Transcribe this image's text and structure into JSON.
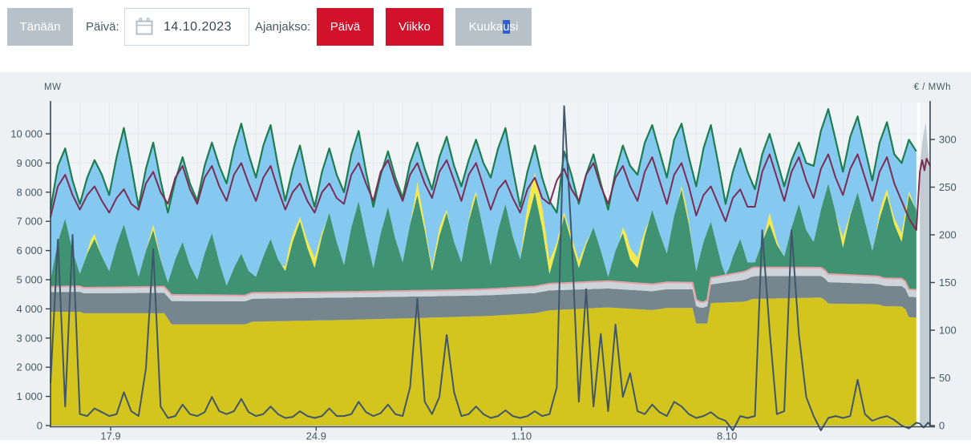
{
  "toolbar": {
    "today_button": "Tänään",
    "date_label": "Päivä:",
    "date_value": "14.10.2023",
    "period_label": "Ajanjakso:",
    "period_buttons": [
      {
        "label": "Päivä"
      },
      {
        "label": "Viikko"
      }
    ],
    "month_button": {
      "before": "Kuuka",
      "highlight": "u",
      "after": "si"
    },
    "colors": {
      "gray_button": "#b7c1c9",
      "red_button": "#d2112b",
      "selection_blue": "#2e5fd3"
    }
  },
  "chart_data": {
    "type": "area",
    "title": "",
    "panel_background": "#edf1f4",
    "plot_background": "#f1f4f6",
    "gridline_color": "#e3e9ee",
    "axis_color": "#36454e",
    "tick_text_color": "#455a64",
    "left_axis": {
      "title": "MW",
      "range": [
        0,
        11000
      ],
      "ticks": [
        {
          "v": 0,
          "label": "0"
        },
        {
          "v": 1000,
          "label": "1 000"
        },
        {
          "v": 2000,
          "label": "2 000"
        },
        {
          "v": 3000,
          "label": "3 000"
        },
        {
          "v": 4000,
          "label": "4 000"
        },
        {
          "v": 5000,
          "label": "5 000"
        },
        {
          "v": 6000,
          "label": "6 000"
        },
        {
          "v": 7000,
          "label": "7 000"
        },
        {
          "v": 8000,
          "label": "8 000"
        },
        {
          "v": 9000,
          "label": "9 000"
        },
        {
          "v": 10000,
          "label": "10 000"
        }
      ]
    },
    "right_axis": {
      "title": "€ / MWh",
      "range": [
        0,
        336
      ],
      "ticks": [
        {
          "v": 0,
          "label": "0"
        },
        {
          "v": 50,
          "label": "50"
        },
        {
          "v": 100,
          "label": "100"
        },
        {
          "v": 150,
          "label": "150"
        },
        {
          "v": 200,
          "label": "200"
        },
        {
          "v": 250,
          "label": "250"
        },
        {
          "v": 300,
          "label": "300"
        }
      ]
    },
    "x_axis": {
      "range": [
        0,
        29.97
      ],
      "data_end": 29.5,
      "ticks": [
        {
          "x": 2.05,
          "label": "17.9"
        },
        {
          "x": 9.05,
          "label": "24.9"
        },
        {
          "x": 16.05,
          "label": "1.10"
        },
        {
          "x": 23.05,
          "label": "8.10"
        }
      ]
    },
    "grid": {
      "start": 0,
      "step": 0.25
    },
    "stack_series": [
      {
        "name": "base-dark-yellow-area",
        "color": "#d4c41e",
        "type": "top-breakpoints",
        "points": [
          [
            0,
            3900
          ],
          [
            1.0,
            3900
          ],
          [
            1.1,
            3850
          ],
          [
            3.95,
            3850
          ],
          [
            4.05,
            3470
          ],
          [
            6.7,
            3470
          ],
          [
            6.8,
            3560
          ],
          [
            10,
            3620
          ],
          [
            13,
            3700
          ],
          [
            15,
            3760
          ],
          [
            16.5,
            3850
          ],
          [
            17,
            3950
          ],
          [
            19,
            4050
          ],
          [
            20.5,
            3960
          ],
          [
            21,
            4030
          ],
          [
            21.9,
            4030
          ],
          [
            22.0,
            3500
          ],
          [
            22.4,
            3500
          ],
          [
            22.5,
            4200
          ],
          [
            23.7,
            4250
          ],
          [
            23.9,
            4340
          ],
          [
            26.3,
            4390
          ],
          [
            26.5,
            4180
          ],
          [
            28.2,
            4160
          ],
          [
            28.4,
            4090
          ],
          [
            29.1,
            4080
          ],
          [
            29.2,
            3720
          ],
          [
            29.5,
            3700
          ]
        ]
      },
      {
        "name": "slate-gray-band",
        "color": "#76868f",
        "type": "thickness-breakpoints",
        "points": [
          [
            0,
            680
          ],
          [
            3.9,
            700
          ],
          [
            4.1,
            800
          ],
          [
            10,
            770
          ],
          [
            14,
            720
          ],
          [
            16,
            700
          ],
          [
            19,
            650
          ],
          [
            21.9,
            640
          ],
          [
            22.2,
            520
          ],
          [
            22.5,
            640
          ],
          [
            24,
            780
          ],
          [
            26.4,
            740
          ],
          [
            28,
            700
          ],
          [
            29.5,
            700
          ]
        ]
      },
      {
        "name": "light-gray-band",
        "color": "#cdd5da",
        "type": "thickness-breakpoints",
        "top_stroke": "#e8a0a6",
        "points": [
          [
            0,
            180
          ],
          [
            4,
            210
          ],
          [
            10,
            190
          ],
          [
            14,
            200
          ],
          [
            16,
            220
          ],
          [
            19,
            250
          ],
          [
            21.9,
            230
          ],
          [
            22.2,
            180
          ],
          [
            22.5,
            220
          ],
          [
            24,
            300
          ],
          [
            26.4,
            280
          ],
          [
            28,
            260
          ],
          [
            29.5,
            250
          ]
        ]
      },
      {
        "name": "green-band",
        "color": "#3f9372",
        "type": "top-grid",
        "values": [
          5000,
          6300,
          7100,
          6000,
          5200,
          5900,
          6400,
          5800,
          5300,
          6200,
          6900,
          6000,
          5100,
          6000,
          6700,
          5700,
          4900,
          5700,
          6300,
          5500,
          5000,
          5900,
          6600,
          5600,
          4800,
          5400,
          5900,
          5300,
          5100,
          5800,
          6400,
          5700,
          5300,
          6300,
          7000,
          6100,
          5400,
          6500,
          7300,
          6300,
          5500,
          6800,
          7700,
          6500,
          5400,
          6600,
          7500,
          6400,
          5600,
          6900,
          7900,
          6700,
          5300,
          6500,
          7300,
          6300,
          5600,
          7000,
          7900,
          6700,
          5500,
          6700,
          7600,
          6500,
          5700,
          7000,
          8000,
          6800,
          5200,
          6100,
          7200,
          6300,
          5400,
          6200,
          6800,
          6000,
          5100,
          6000,
          6600,
          5700,
          5400,
          6500,
          7400,
          6600,
          5900,
          7200,
          8100,
          6900,
          5300,
          6300,
          7000,
          6000,
          5000,
          5800,
          6400,
          5600,
          5600,
          6300,
          6900,
          6200,
          5800,
          6800,
          7600,
          6700,
          6300,
          7400,
          8300,
          7300,
          6100,
          7200,
          8000,
          7000,
          6000,
          7100,
          7900,
          6900,
          6300,
          7900,
          7400
        ]
      },
      {
        "name": "bright-yellow-band",
        "color": "#f6e94b",
        "type": "thickness-breakpoints",
        "points": [
          [
            0,
            0
          ],
          [
            1.2,
            0
          ],
          [
            1.4,
            250
          ],
          [
            1.7,
            0
          ],
          [
            3.3,
            0
          ],
          [
            3.5,
            200
          ],
          [
            3.8,
            0
          ],
          [
            7.9,
            0
          ],
          [
            8.1,
            300
          ],
          [
            8.5,
            150
          ],
          [
            9.0,
            350
          ],
          [
            9.4,
            0
          ],
          [
            12.3,
            0
          ],
          [
            12.5,
            450
          ],
          [
            12.9,
            100
          ],
          [
            13.3,
            300
          ],
          [
            13.6,
            0
          ],
          [
            14.2,
            0
          ],
          [
            14.4,
            250
          ],
          [
            14.6,
            0
          ],
          [
            16.0,
            0
          ],
          [
            16.3,
            650
          ],
          [
            16.8,
            700
          ],
          [
            17.2,
            200
          ],
          [
            17.5,
            120
          ],
          [
            18.0,
            250
          ],
          [
            18.4,
            0
          ],
          [
            19.4,
            0
          ],
          [
            19.6,
            400
          ],
          [
            20.1,
            350
          ],
          [
            20.4,
            0
          ],
          [
            21.4,
            0
          ],
          [
            21.6,
            250
          ],
          [
            21.9,
            0
          ],
          [
            24.3,
            0
          ],
          [
            24.5,
            400
          ],
          [
            24.9,
            0
          ],
          [
            26.8,
            0
          ],
          [
            27.0,
            350
          ],
          [
            27.3,
            0
          ],
          [
            28.1,
            0
          ],
          [
            28.3,
            300
          ],
          [
            28.6,
            150
          ],
          [
            29.0,
            300
          ],
          [
            29.3,
            100
          ],
          [
            29.5,
            0
          ]
        ]
      },
      {
        "name": "sky-blue-band",
        "color": "#85c9f0",
        "type": "top-grid",
        "top_stroke": "#1d7d4f",
        "values": [
          7400,
          8900,
          9500,
          8400,
          7600,
          8500,
          9100,
          8600,
          7900,
          9200,
          10200,
          8900,
          7500,
          8800,
          9700,
          8400,
          7300,
          8400,
          9200,
          8300,
          7700,
          8900,
          9700,
          8900,
          8300,
          9500,
          10350,
          9300,
          8500,
          9600,
          10300,
          8900,
          7700,
          8800,
          9600,
          8400,
          7500,
          8700,
          9500,
          8600,
          8000,
          9300,
          10100,
          8700,
          7500,
          8600,
          9400,
          8500,
          7800,
          9000,
          9700,
          8800,
          8100,
          9200,
          9900,
          8900,
          8200,
          9100,
          9800,
          9000,
          8500,
          9500,
          10200,
          8800,
          7500,
          8700,
          9600,
          8500,
          7700,
          7300,
          9400,
          8600,
          7600,
          8600,
          9300,
          8300,
          7400,
          8700,
          9600,
          8900,
          8600,
          9700,
          10300,
          9400,
          8500,
          9800,
          10350,
          9200,
          8200,
          9500,
          10300,
          9000,
          7600,
          8700,
          9500,
          8700,
          8100,
          9300,
          10000,
          9100,
          8200,
          9100,
          9700,
          9000,
          8900,
          10100,
          10850,
          9800,
          8700,
          9900,
          10600,
          9500,
          8400,
          9700,
          10400,
          9300,
          9000,
          9800,
          9400
        ]
      }
    ],
    "lines": [
      {
        "name": "dark-red-line",
        "color": "#7b2d55",
        "axis": "left",
        "width": 2,
        "values": [
          7150,
          8200,
          8600,
          7900,
          7400,
          7900,
          8200,
          7700,
          7300,
          7800,
          8100,
          7600,
          7400,
          8300,
          8700,
          8000,
          7600,
          8500,
          8900,
          8100,
          7600,
          8500,
          8900,
          8200,
          7700,
          8600,
          9000,
          8300,
          7700,
          8500,
          8900,
          8100,
          7400,
          8000,
          8300,
          7700,
          7300,
          8000,
          8300,
          7800,
          7600,
          8600,
          9000,
          8300,
          7700,
          8700,
          9100,
          8300,
          7700,
          8600,
          9000,
          8300,
          7800,
          8700,
          9100,
          8400,
          7700,
          8600,
          9000,
          8200,
          7400,
          8100,
          8400,
          7800,
          7300,
          8100,
          8500,
          7800,
          7600,
          8400,
          8800,
          8100,
          7700,
          8600,
          9000,
          8200,
          7600,
          8500,
          8900,
          8200,
          7700,
          8700,
          9200,
          8400,
          7600,
          8600,
          9000,
          8200,
          7200,
          7900,
          8200,
          7600,
          7000,
          7800,
          8100,
          7500,
          7500,
          8700,
          9300,
          8500,
          7700,
          8700,
          9200,
          8400,
          7800,
          8800,
          9300,
          8500,
          7900,
          8800,
          9300,
          8500,
          7700,
          8700,
          9200,
          8300,
          7700,
          7100,
          6700
        ],
        "tail": [
          [
            29.62,
            8700
          ],
          [
            29.7,
            9100
          ],
          [
            29.78,
            8750
          ],
          [
            29.85,
            9150
          ],
          [
            29.97,
            8900
          ]
        ]
      },
      {
        "name": "price-line",
        "color": "#3f566b",
        "axis": "right",
        "width": 2,
        "values": [
          45,
          195,
          20,
          200,
          12,
          10,
          18,
          14,
          10,
          12,
          35,
          15,
          10,
          60,
          185,
          20,
          8,
          10,
          22,
          12,
          10,
          14,
          30,
          15,
          12,
          15,
          28,
          14,
          10,
          12,
          20,
          12,
          8,
          9,
          15,
          10,
          8,
          10,
          18,
          10,
          10,
          12,
          25,
          14,
          10,
          13,
          22,
          12,
          10,
          40,
          133,
          25,
          12,
          30,
          95,
          35,
          10,
          12,
          20,
          12,
          8,
          10,
          16,
          10,
          8,
          10,
          15,
          10,
          12,
          40,
          335,
          200,
          25,
          143,
          20,
          96,
          15,
          106,
          30,
          55,
          15,
          12,
          22,
          14,
          10,
          25,
          20,
          12,
          8,
          10,
          14,
          8,
          5,
          -5,
          10,
          8,
          10,
          205,
          100,
          12,
          15,
          205,
          95,
          30,
          10,
          -5,
          8,
          10,
          8,
          10,
          48,
          12,
          5,
          8,
          10,
          6,
          0,
          -3,
          3
        ],
        "tail": [
          [
            29.62,
            2
          ],
          [
            29.75,
            -2
          ],
          [
            29.9,
            3
          ],
          [
            29.97,
            1
          ]
        ]
      }
    ],
    "forecast_area": {
      "name": "gray-end-area",
      "color": "#c2ccd4",
      "points": [
        [
          29.62,
          8900
        ],
        [
          29.7,
          9700
        ],
        [
          29.82,
          10400
        ],
        [
          29.9,
          9400
        ],
        [
          29.97,
          8600
        ]
      ]
    },
    "now_marker": {
      "x0": 29.5,
      "x1": 29.62,
      "color": "#ffffff"
    }
  }
}
